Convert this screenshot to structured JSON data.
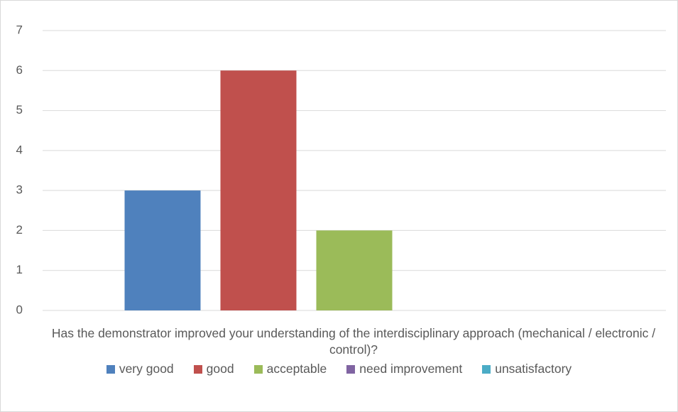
{
  "chart_data": {
    "type": "bar",
    "categories": [
      "Has the demonstrator improved your understanding of the interdisciplinary approach (mechanical / electronic / control)?"
    ],
    "series": [
      {
        "name": "very good",
        "color": "#4f81bd",
        "values": [
          3
        ]
      },
      {
        "name": "good",
        "color": "#c0504d",
        "values": [
          6
        ]
      },
      {
        "name": "acceptable",
        "color": "#9bbb59",
        "values": [
          2
        ]
      },
      {
        "name": "need improvement",
        "color": "#8064a2",
        "values": [
          0
        ]
      },
      {
        "name": "unsatisfactory",
        "color": "#4bacc6",
        "values": [
          0
        ]
      }
    ],
    "ylim": [
      0,
      7
    ],
    "yticks": [
      0,
      1,
      2,
      3,
      4,
      5,
      6,
      7
    ],
    "grid": true,
    "legend": "bottom"
  }
}
